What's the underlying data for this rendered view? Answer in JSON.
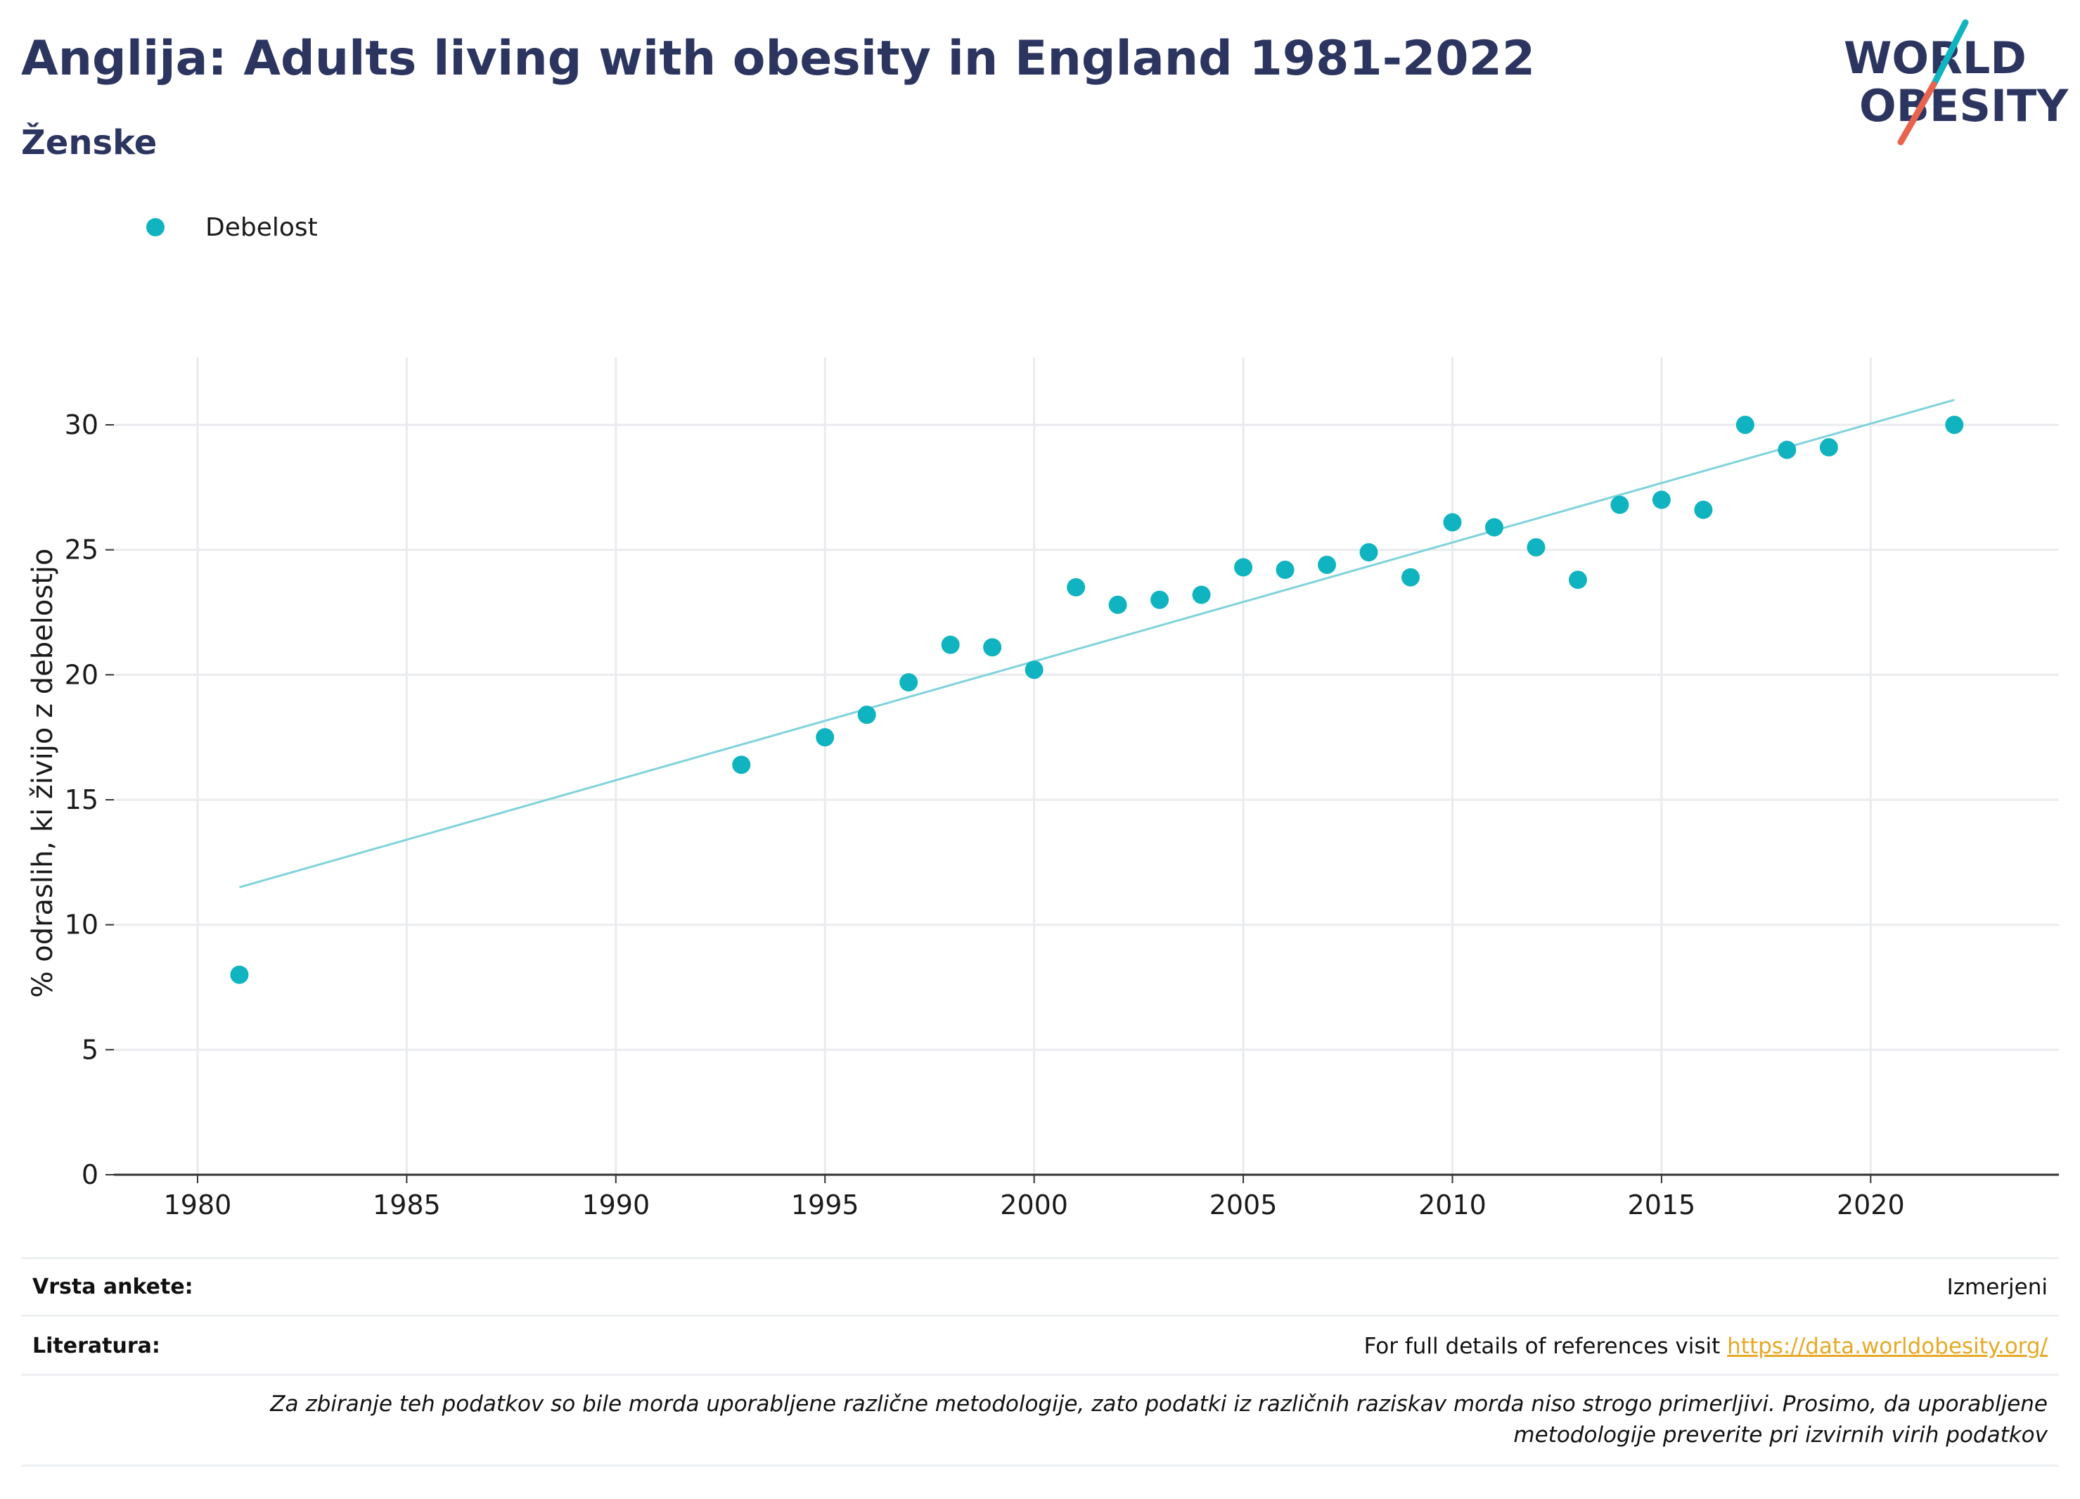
{
  "header": {
    "title": "Anglija: Adults living with obesity in England 1981-2022",
    "subtitle": "Ženske"
  },
  "logo": {
    "line1": "WORLD",
    "line2": "OBESITY",
    "text_color": "#2b3560",
    "slash_teal": "#10b3c0",
    "slash_red": "#e8634d"
  },
  "legend": {
    "label": "Debelost",
    "color": "#10b3c0"
  },
  "chart_data": {
    "type": "scatter",
    "title": "Anglija: Adults living with obesity in England 1981-2022",
    "ylabel": "% odraslih, ki živijo z debelostjo",
    "xlabel": "",
    "xlim": [
      1978,
      2024.5
    ],
    "ylim": [
      0,
      32.7
    ],
    "xticks": [
      1980,
      1985,
      1990,
      1995,
      2000,
      2005,
      2010,
      2015,
      2020
    ],
    "yticks": [
      0,
      5,
      10,
      15,
      20,
      25,
      30
    ],
    "grid": true,
    "legend_position": "top-left",
    "series": [
      {
        "name": "Debelost",
        "color": "#10b3c0",
        "points": [
          {
            "x": 1981,
            "y": 8.0
          },
          {
            "x": 1993,
            "y": 16.4
          },
          {
            "x": 1995,
            "y": 17.5
          },
          {
            "x": 1996,
            "y": 18.4
          },
          {
            "x": 1997,
            "y": 19.7
          },
          {
            "x": 1998,
            "y": 21.2
          },
          {
            "x": 1999,
            "y": 21.1
          },
          {
            "x": 2000,
            "y": 20.2
          },
          {
            "x": 2001,
            "y": 23.5
          },
          {
            "x": 2002,
            "y": 22.8
          },
          {
            "x": 2003,
            "y": 23.0
          },
          {
            "x": 2004,
            "y": 23.2
          },
          {
            "x": 2005,
            "y": 24.3
          },
          {
            "x": 2006,
            "y": 24.2
          },
          {
            "x": 2007,
            "y": 24.4
          },
          {
            "x": 2008,
            "y": 24.9
          },
          {
            "x": 2009,
            "y": 23.9
          },
          {
            "x": 2010,
            "y": 26.1
          },
          {
            "x": 2011,
            "y": 25.9
          },
          {
            "x": 2012,
            "y": 25.1
          },
          {
            "x": 2013,
            "y": 23.8
          },
          {
            "x": 2014,
            "y": 26.8
          },
          {
            "x": 2015,
            "y": 27.0
          },
          {
            "x": 2016,
            "y": 26.6
          },
          {
            "x": 2017,
            "y": 30.0
          },
          {
            "x": 2018,
            "y": 29.0
          },
          {
            "x": 2019,
            "y": 29.1
          },
          {
            "x": 2022,
            "y": 30.0
          }
        ]
      }
    ],
    "trendline": {
      "color": "#7fd3db",
      "from": {
        "x": 1981,
        "y": 11.5
      },
      "to": {
        "x": 2022,
        "y": 31.0
      }
    }
  },
  "footer": {
    "survey_key": "Vrsta ankete:",
    "survey_value": "Izmerjeni",
    "refs_key": "Literatura:",
    "refs_text": "For full details of references visit",
    "refs_link": "https://data.worldobesity.org/",
    "note": "Za zbiranje teh podatkov so bile morda uporabljene različne metodologije, zato podatki iz različnih raziskav morda niso strogo primerljivi. Prosimo, da uporabljene metodologije preverite pri izvirnih virih podatkov"
  }
}
